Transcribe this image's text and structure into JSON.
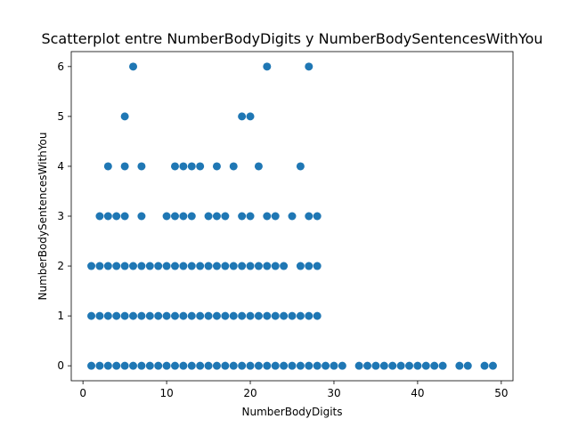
{
  "chart_data": {
    "type": "scatter",
    "title": "Scatterplot entre NumberBodyDigits y NumberBodySentencesWithYou",
    "xlabel": "NumberBodyDigits",
    "ylabel": "NumberBodySentencesWithYou",
    "xlim": [
      -1.4,
      51.4
    ],
    "ylim": [
      -0.3,
      6.3
    ],
    "xticks": [
      0,
      10,
      20,
      30,
      40,
      50
    ],
    "yticks": [
      0,
      1,
      2,
      3,
      4,
      5,
      6
    ],
    "grid": false,
    "marker_color": "#1f77b4",
    "points": [
      [
        1,
        0
      ],
      [
        2,
        0
      ],
      [
        3,
        0
      ],
      [
        4,
        0
      ],
      [
        5,
        0
      ],
      [
        6,
        0
      ],
      [
        7,
        0
      ],
      [
        8,
        0
      ],
      [
        9,
        0
      ],
      [
        10,
        0
      ],
      [
        11,
        0
      ],
      [
        12,
        0
      ],
      [
        13,
        0
      ],
      [
        14,
        0
      ],
      [
        15,
        0
      ],
      [
        16,
        0
      ],
      [
        17,
        0
      ],
      [
        18,
        0
      ],
      [
        19,
        0
      ],
      [
        20,
        0
      ],
      [
        21,
        0
      ],
      [
        22,
        0
      ],
      [
        23,
        0
      ],
      [
        24,
        0
      ],
      [
        25,
        0
      ],
      [
        26,
        0
      ],
      [
        27,
        0
      ],
      [
        28,
        0
      ],
      [
        29,
        0
      ],
      [
        30,
        0
      ],
      [
        31,
        0
      ],
      [
        33,
        0
      ],
      [
        34,
        0
      ],
      [
        35,
        0
      ],
      [
        36,
        0
      ],
      [
        37,
        0
      ],
      [
        38,
        0
      ],
      [
        39,
        0
      ],
      [
        40,
        0
      ],
      [
        41,
        0
      ],
      [
        42,
        0
      ],
      [
        43,
        0
      ],
      [
        45,
        0
      ],
      [
        46,
        0
      ],
      [
        48,
        0
      ],
      [
        49,
        0
      ],
      [
        1,
        1
      ],
      [
        2,
        1
      ],
      [
        3,
        1
      ],
      [
        4,
        1
      ],
      [
        5,
        1
      ],
      [
        6,
        1
      ],
      [
        7,
        1
      ],
      [
        8,
        1
      ],
      [
        9,
        1
      ],
      [
        10,
        1
      ],
      [
        11,
        1
      ],
      [
        12,
        1
      ],
      [
        13,
        1
      ],
      [
        14,
        1
      ],
      [
        15,
        1
      ],
      [
        16,
        1
      ],
      [
        17,
        1
      ],
      [
        18,
        1
      ],
      [
        19,
        1
      ],
      [
        20,
        1
      ],
      [
        21,
        1
      ],
      [
        22,
        1
      ],
      [
        23,
        1
      ],
      [
        24,
        1
      ],
      [
        25,
        1
      ],
      [
        26,
        1
      ],
      [
        27,
        1
      ],
      [
        28,
        1
      ],
      [
        1,
        2
      ],
      [
        2,
        2
      ],
      [
        3,
        2
      ],
      [
        4,
        2
      ],
      [
        5,
        2
      ],
      [
        6,
        2
      ],
      [
        7,
        2
      ],
      [
        8,
        2
      ],
      [
        9,
        2
      ],
      [
        10,
        2
      ],
      [
        11,
        2
      ],
      [
        12,
        2
      ],
      [
        13,
        2
      ],
      [
        14,
        2
      ],
      [
        15,
        2
      ],
      [
        16,
        2
      ],
      [
        17,
        2
      ],
      [
        18,
        2
      ],
      [
        19,
        2
      ],
      [
        20,
        2
      ],
      [
        21,
        2
      ],
      [
        22,
        2
      ],
      [
        23,
        2
      ],
      [
        24,
        2
      ],
      [
        26,
        2
      ],
      [
        27,
        2
      ],
      [
        28,
        2
      ],
      [
        2,
        3
      ],
      [
        3,
        3
      ],
      [
        4,
        3
      ],
      [
        5,
        3
      ],
      [
        7,
        3
      ],
      [
        10,
        3
      ],
      [
        11,
        3
      ],
      [
        12,
        3
      ],
      [
        13,
        3
      ],
      [
        15,
        3
      ],
      [
        16,
        3
      ],
      [
        17,
        3
      ],
      [
        19,
        3
      ],
      [
        20,
        3
      ],
      [
        22,
        3
      ],
      [
        23,
        3
      ],
      [
        25,
        3
      ],
      [
        27,
        3
      ],
      [
        28,
        3
      ],
      [
        3,
        4
      ],
      [
        5,
        4
      ],
      [
        7,
        4
      ],
      [
        11,
        4
      ],
      [
        12,
        4
      ],
      [
        13,
        4
      ],
      [
        14,
        4
      ],
      [
        16,
        4
      ],
      [
        18,
        4
      ],
      [
        21,
        4
      ],
      [
        26,
        4
      ],
      [
        5,
        5
      ],
      [
        19,
        5
      ],
      [
        20,
        5
      ],
      [
        6,
        6
      ],
      [
        22,
        6
      ],
      [
        27,
        6
      ]
    ]
  }
}
